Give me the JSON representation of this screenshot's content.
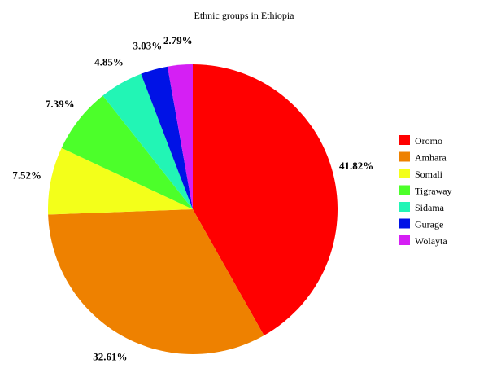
{
  "chart_data": {
    "type": "pie",
    "title": "Ethnic groups in Ethiopia",
    "categories": [
      "Oromo",
      "Amhara",
      "Somali",
      "Tigraway",
      "Sidama",
      "Gurage",
      "Wolayta"
    ],
    "values": [
      41.82,
      32.61,
      7.52,
      7.39,
      4.85,
      3.03,
      2.79
    ],
    "data_labels": [
      "41.82%",
      "32.61%",
      "7.52%",
      "7.39%",
      "4.85%",
      "3.03%",
      "2.79%"
    ],
    "colors": [
      "#ff0000",
      "#ee8100",
      "#f3ff1a",
      "#4cff2a",
      "#22f5b5",
      "#0012e6",
      "#d51ff4"
    ],
    "legend_placement": "right",
    "start_angle_deg": 0,
    "direction": "clockwise"
  }
}
